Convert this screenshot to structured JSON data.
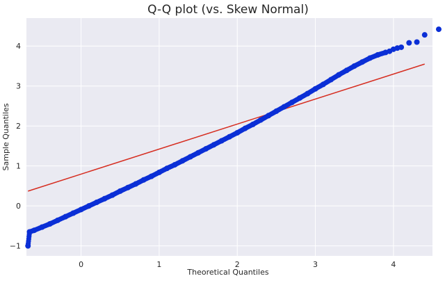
{
  "chart_data": {
    "type": "scatter",
    "title": "Q-Q plot (vs. Skew Normal)",
    "xlabel": "Theoretical Quantiles",
    "ylabel": "Sample Quantiles",
    "xlim": [
      -0.7,
      4.5
    ],
    "ylim": [
      -1.25,
      4.7
    ],
    "xticks": [
      0,
      1,
      2,
      3,
      4
    ],
    "yticks": [
      -1,
      0,
      1,
      2,
      3,
      4
    ],
    "grid": true,
    "series": [
      {
        "kind": "points",
        "color": "#0b2fd6",
        "points": [
          [
            -0.68,
            -1.0
          ],
          [
            -0.66,
            -0.65
          ],
          [
            -0.6,
            -0.61
          ],
          [
            -0.5,
            -0.53
          ],
          [
            -0.4,
            -0.45
          ],
          [
            -0.3,
            -0.36
          ],
          [
            -0.2,
            -0.27
          ],
          [
            -0.1,
            -0.18
          ],
          [
            0.0,
            -0.09
          ],
          [
            0.1,
            0.0
          ],
          [
            0.2,
            0.09
          ],
          [
            0.3,
            0.18
          ],
          [
            0.4,
            0.27
          ],
          [
            0.5,
            0.37
          ],
          [
            0.6,
            0.46
          ],
          [
            0.7,
            0.55
          ],
          [
            0.8,
            0.65
          ],
          [
            0.9,
            0.74
          ],
          [
            1.0,
            0.84
          ],
          [
            1.1,
            0.94
          ],
          [
            1.2,
            1.03
          ],
          [
            1.3,
            1.13
          ],
          [
            1.4,
            1.23
          ],
          [
            1.5,
            1.33
          ],
          [
            1.6,
            1.43
          ],
          [
            1.7,
            1.53
          ],
          [
            1.8,
            1.63
          ],
          [
            1.9,
            1.73
          ],
          [
            2.0,
            1.83
          ],
          [
            2.1,
            1.94
          ],
          [
            2.2,
            2.04
          ],
          [
            2.3,
            2.15
          ],
          [
            2.4,
            2.26
          ],
          [
            2.5,
            2.37
          ],
          [
            2.6,
            2.48
          ],
          [
            2.7,
            2.59
          ],
          [
            2.8,
            2.7
          ],
          [
            2.9,
            2.81
          ],
          [
            3.0,
            2.93
          ],
          [
            3.1,
            3.04
          ],
          [
            3.2,
            3.16
          ],
          [
            3.3,
            3.28
          ],
          [
            3.4,
            3.39
          ],
          [
            3.5,
            3.5
          ],
          [
            3.6,
            3.6
          ],
          [
            3.7,
            3.7
          ],
          [
            3.8,
            3.78
          ],
          [
            3.9,
            3.84
          ],
          [
            3.95,
            3.87
          ],
          [
            4.0,
            3.92
          ],
          [
            4.05,
            3.95
          ],
          [
            4.1,
            3.97
          ],
          [
            4.2,
            4.08
          ],
          [
            4.3,
            4.1
          ],
          [
            4.4,
            4.28
          ],
          [
            4.58,
            4.42
          ]
        ]
      },
      {
        "kind": "line",
        "color": "#d62d20",
        "points": [
          [
            -0.68,
            0.37
          ],
          [
            4.4,
            3.55
          ]
        ]
      }
    ]
  }
}
